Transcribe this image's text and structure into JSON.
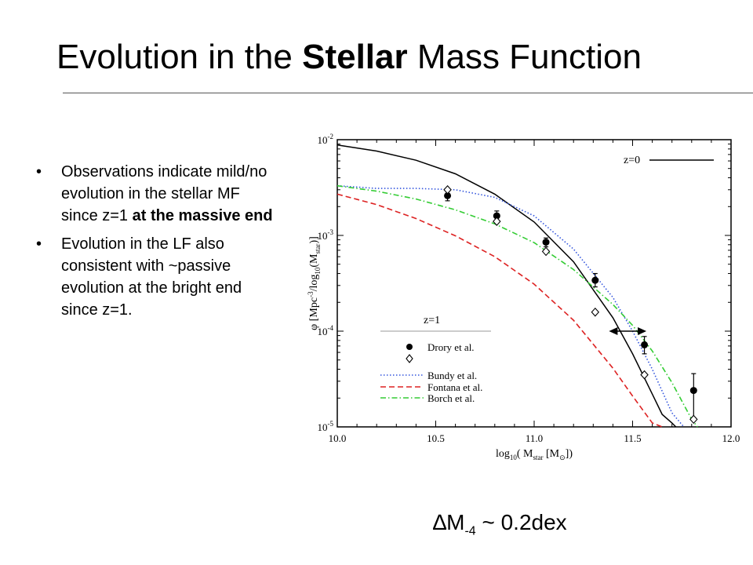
{
  "slide": {
    "title_pre": "Evolution in the ",
    "title_bold": "Stellar",
    "title_post": " Mass Function",
    "bullet1_text": "Observations indicate mild/no evolution in the stellar MF since z=1 ",
    "bullet1_bold": "at the massive end",
    "bullet2_text": "Evolution in the LF also consistent with ~passive evolution at the bright end since z=1.",
    "bullet_glyph": "•",
    "caption_delta": "∆M",
    "caption_sub": "-4",
    "caption_rest": " ~ 0.2dex"
  },
  "chart_data": {
    "type": "line",
    "log_y": true,
    "xlim": [
      10.0,
      12.0
    ],
    "ylim": [
      1e-05,
      0.01
    ],
    "x_ticks": [
      "10.0",
      "10.5",
      "11.0",
      "11.5",
      "12.0"
    ],
    "y_ticks": [
      {
        "base": "10",
        "exp": "-5"
      },
      {
        "base": "10",
        "exp": "-4"
      },
      {
        "base": "10",
        "exp": "-3"
      },
      {
        "base": "10",
        "exp": "-2"
      }
    ],
    "xlabel": "log10( Mstar [M⊙])",
    "xlabel_parts": {
      "a": "log",
      "a_sub": "10",
      "b": "( M",
      "b_sub": "star",
      "c": " [M",
      "c_sub": "⊙",
      "d": "])"
    },
    "ylabel": "φ [Mpc^-3/log10(Mstar)]",
    "ylabel_parts": {
      "a": "φ  [Mpc",
      "a_sup": "-3",
      "b": "/log",
      "b_sub": "10",
      "c": "(M",
      "c_sub": "star",
      "d": ")]"
    },
    "legend_z0": "z=0",
    "legend_z1": "z=1",
    "series": [
      {
        "name": "z=0",
        "style": "solid",
        "color": "#000000",
        "x": [
          10.0,
          10.2,
          10.4,
          10.6,
          10.8,
          11.0,
          11.2,
          11.4,
          11.5,
          11.6,
          11.65,
          11.7,
          11.72
        ],
        "y": [
          0.0088,
          0.0076,
          0.0061,
          0.0044,
          0.0027,
          0.00138,
          0.00053,
          0.000138,
          5.8e-05,
          2.2e-05,
          1.35e-05,
          1.1e-05,
          1e-05
        ]
      },
      {
        "name": "Bundy et al.",
        "style": "dotted",
        "color": "#3355dd",
        "x": [
          10.0,
          10.2,
          10.4,
          10.6,
          10.8,
          11.0,
          11.2,
          11.4,
          11.5,
          11.6,
          11.7,
          11.76
        ],
        "y": [
          0.0033,
          0.0031,
          0.0031,
          0.003,
          0.0025,
          0.0016,
          0.00072,
          0.000225,
          0.0001,
          4e-05,
          1.4e-05,
          1e-05
        ]
      },
      {
        "name": "Fontana et al.",
        "style": "dashed",
        "color": "#dd2222",
        "x": [
          10.0,
          10.2,
          10.4,
          10.6,
          10.8,
          11.0,
          11.2,
          11.4,
          11.5,
          11.6,
          11.65
        ],
        "y": [
          0.0027,
          0.0021,
          0.0015,
          0.00099,
          0.0006,
          0.00031,
          0.00013,
          4.1e-05,
          2.1e-05,
          1.1e-05,
          1e-05
        ]
      },
      {
        "name": "Borch et al.",
        "style": "dashdot",
        "color": "#33cc33",
        "x": [
          10.0,
          10.2,
          10.4,
          10.6,
          10.8,
          11.0,
          11.2,
          11.4,
          11.5,
          11.6,
          11.7,
          11.8,
          11.83
        ],
        "y": [
          0.0033,
          0.0029,
          0.0024,
          0.00185,
          0.00132,
          0.00084,
          0.00044,
          0.00019,
          0.000115,
          6.2e-05,
          2.9e-05,
          1.2e-05,
          1e-05
        ]
      }
    ],
    "points": [
      {
        "name": "Drory et al.",
        "marker": "filled-circle",
        "x": [
          10.56,
          10.81,
          11.06,
          11.31,
          11.56,
          11.81
        ],
        "y": [
          0.0026,
          0.0016,
          0.00085,
          0.00034,
          7.2e-05,
          2.4e-05
        ],
        "err_lo": [
          0.0023,
          0.0014,
          0.00076,
          0.00029,
          5.8e-05,
          1.25e-05
        ],
        "err_hi": [
          0.003,
          0.0018,
          0.00094,
          0.0004,
          8.8e-05,
          3.6e-05
        ]
      },
      {
        "name": "Drory et al. (open)",
        "marker": "open-diamond",
        "x": [
          10.56,
          10.81,
          11.06,
          11.31,
          11.56,
          11.81
        ],
        "y": [
          0.003,
          0.0014,
          0.00068,
          0.000158,
          3.5e-05,
          1.2e-05
        ]
      }
    ],
    "annotation": {
      "arrow_x": [
        11.38,
        11.57
      ],
      "arrow_y": 0.0001
    },
    "legend": [
      {
        "label": "Drory et al.",
        "marker": "filled-circle"
      },
      {
        "label": "Bundy et al.",
        "style": "dotted",
        "color": "#3355dd"
      },
      {
        "label": "Fontana et al.",
        "style": "dashed",
        "color": "#dd2222"
      },
      {
        "label": "Borch et al.",
        "style": "dashdot",
        "color": "#33cc33"
      }
    ],
    "legend_position": "bottom-left"
  }
}
